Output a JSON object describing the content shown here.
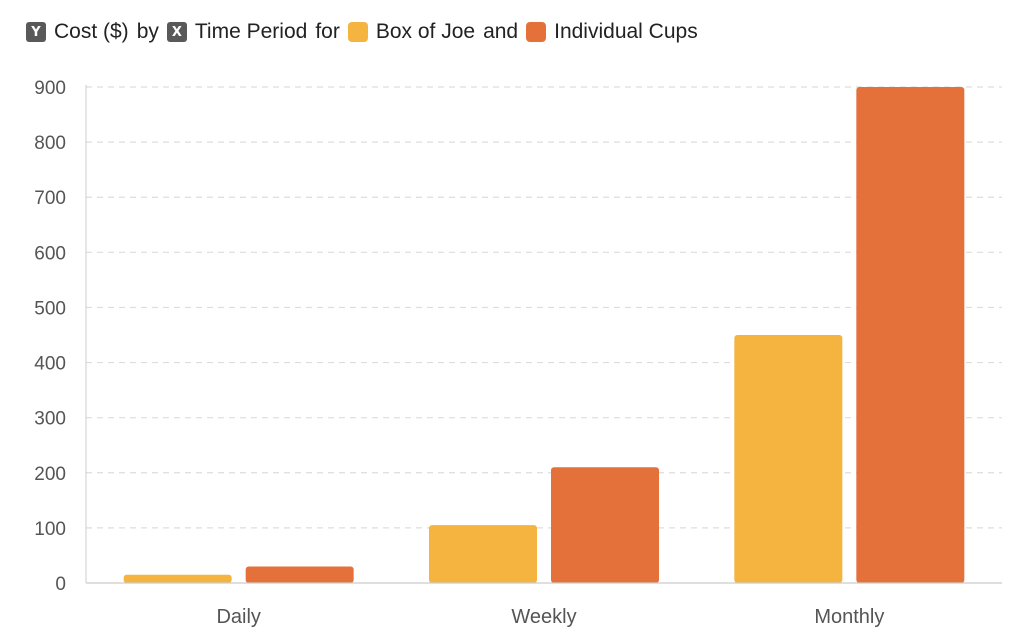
{
  "title": {
    "y_badge": "Y",
    "y_label": "Cost ($)",
    "by": "by",
    "x_badge": "X",
    "x_label": "Time Period",
    "for": "for",
    "and": "and"
  },
  "colors": {
    "box_of_joe": "#F5B33F",
    "individual_cups": "#E4703A",
    "grid": "#dddddd",
    "axis": "#cccccc",
    "badge": "#595959"
  },
  "chart_data": {
    "type": "bar",
    "categories": [
      "Daily",
      "Weekly",
      "Monthly"
    ],
    "series": [
      {
        "name": "Box of Joe",
        "values": [
          15,
          105,
          450
        ]
      },
      {
        "name": "Individual Cups",
        "values": [
          30,
          210,
          900
        ]
      }
    ],
    "xlabel": "Time Period",
    "ylabel": "Cost ($)",
    "ylim": [
      0,
      900
    ],
    "yticks": [
      0,
      100,
      200,
      300,
      400,
      500,
      600,
      700,
      800,
      900
    ],
    "grid": true,
    "legend": "top-left"
  }
}
